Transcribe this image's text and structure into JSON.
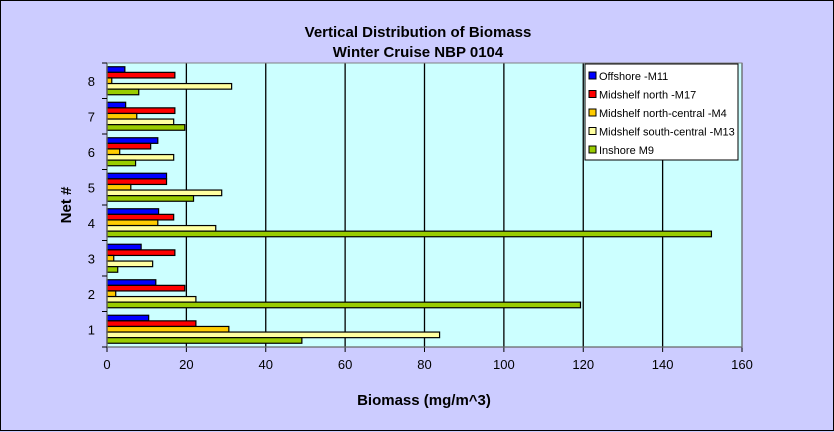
{
  "chart_data": {
    "type": "bar",
    "orientation": "horizontal",
    "title": "Vertical Distribution of Biomass",
    "subtitle": "Winter Cruise NBP 0104",
    "xlabel": "Biomass (mg/m^3)",
    "ylabel": "Net #",
    "xlim": [
      0,
      160
    ],
    "xticks": [
      "0",
      "20",
      "40",
      "60",
      "80",
      "100",
      "120",
      "140",
      "160"
    ],
    "categories": [
      "1",
      "2",
      "3",
      "4",
      "5",
      "6",
      "7",
      "8"
    ],
    "grid": "vertical major gridlines",
    "legend_position": "top-right",
    "series": [
      {
        "name": "Offshore -M11",
        "color": "#0000ff",
        "values": [
          10.5,
          12.3,
          8.6,
          13.0,
          15.0,
          12.8,
          4.7,
          4.5
        ]
      },
      {
        "name": "Midshelf north -M17",
        "color": "#ff0000",
        "values": [
          22.4,
          19.6,
          17.1,
          16.8,
          15.0,
          11.0,
          17.1,
          17.1
        ]
      },
      {
        "name": "Midshelf north-central -M4",
        "color": "#ffcc00",
        "values": [
          30.7,
          2.2,
          1.7,
          12.8,
          6.0,
          3.2,
          7.5,
          1.2
        ]
      },
      {
        "name": "Midshelf south-central -M13",
        "color": "#ffffa0",
        "values": [
          83.8,
          22.4,
          11.5,
          27.4,
          28.9,
          16.8,
          16.8,
          31.4
        ]
      },
      {
        "name": "Inshore M9",
        "color": "#99cc00",
        "values": [
          49.1,
          119.3,
          2.7,
          152.3,
          21.8,
          7.2,
          19.6,
          8.0
        ]
      }
    ]
  }
}
